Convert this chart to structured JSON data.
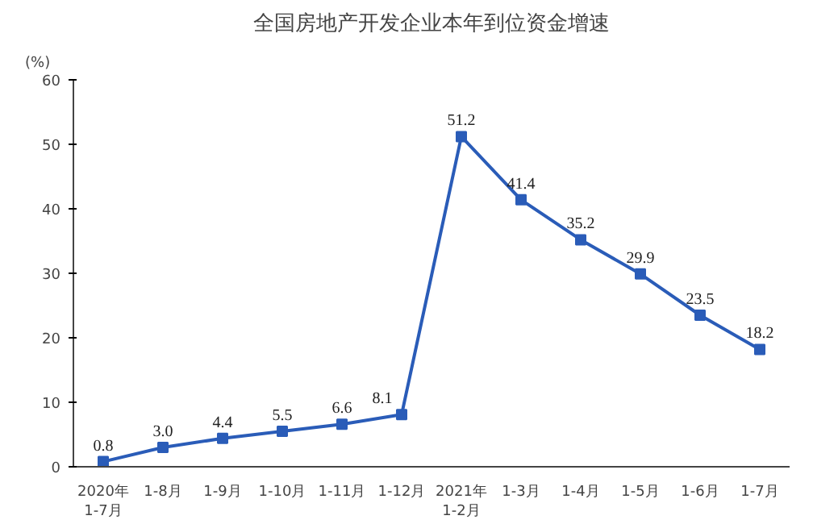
{
  "chart_data": {
    "type": "line",
    "title": "全国房地产开发企业本年到位资金增速",
    "ylabel": "(%)",
    "categories": [
      "2020年\n1-7月",
      "1-8月",
      "1-9月",
      "1-10月",
      "1-11月",
      "1-12月",
      "2021年\n1-2月",
      "1-3月",
      "1-4月",
      "1-5月",
      "1-6月",
      "1-7月"
    ],
    "series": [
      {
        "color": "#2a5cb8",
        "values": [
          0.8,
          3.0,
          4.4,
          5.5,
          6.6,
          8.1,
          51.2,
          41.4,
          35.2,
          29.9,
          23.5,
          18.2
        ]
      }
    ],
    "value_labels": [
      "0.8",
      "3.0",
      "4.4",
      "5.5",
      "6.6",
      "8.1",
      "51.2",
      "41.4",
      "35.2",
      "29.9",
      "23.5",
      "18.2"
    ],
    "ylim": [
      0,
      60
    ],
    "yticks": [
      0,
      10,
      20,
      30,
      40,
      50,
      60
    ],
    "grid": false,
    "marker": "square",
    "line_style": "solid"
  }
}
